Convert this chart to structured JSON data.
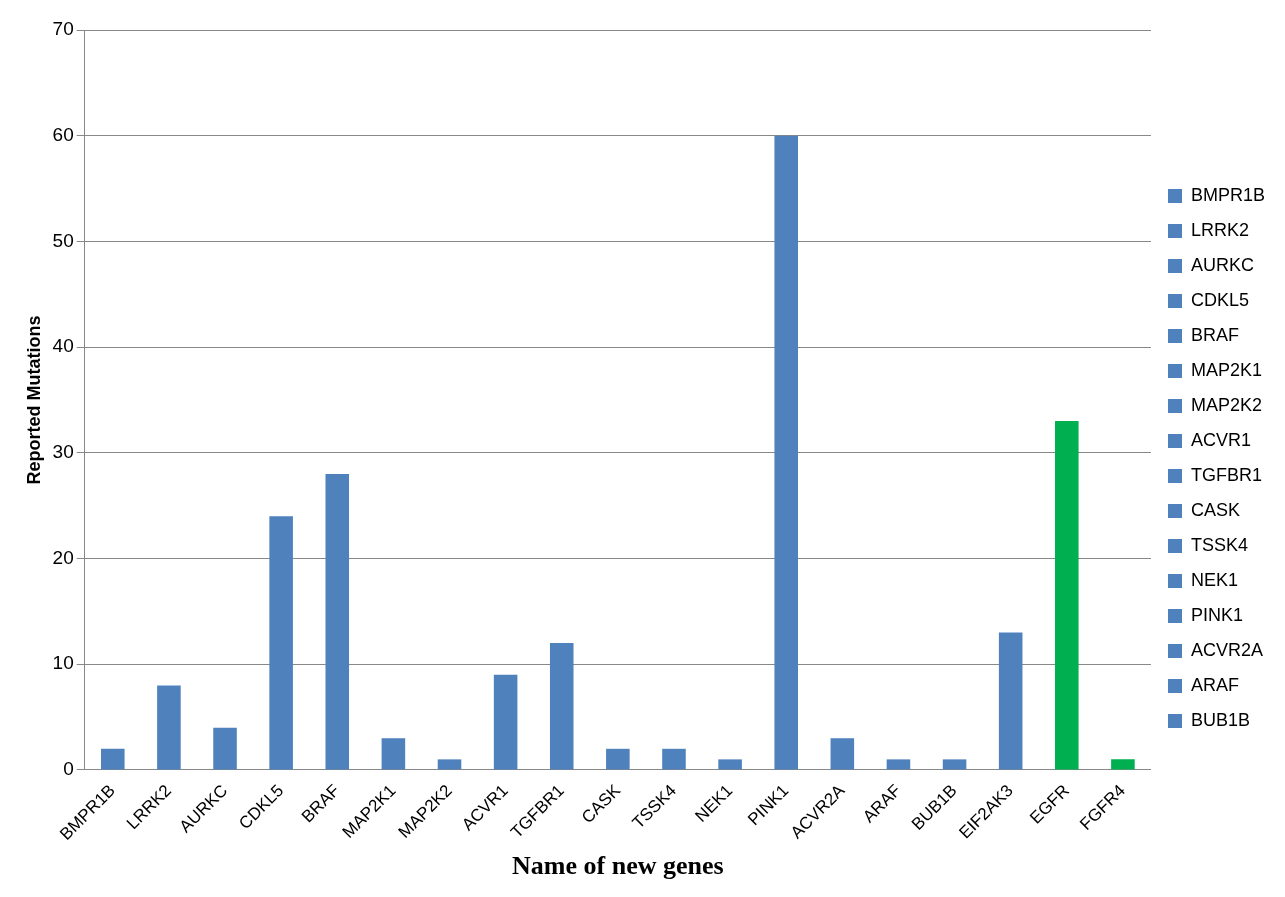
{
  "chart_data": {
    "type": "bar",
    "xlabel": "Name of new genes",
    "ylabel": "Reported Mutations",
    "categories": [
      "BMPR1B",
      "LRRK2",
      "AURKC",
      "CDKL5",
      "BRAF",
      "MAP2K1",
      "MAP2K2",
      "ACVR1",
      "TGFBR1",
      "CASK",
      "TSSK4",
      "NEK1",
      "PINK1",
      "ACVR2A",
      "ARAF",
      "BUB1B",
      "EIF2AK3",
      "EGFR",
      "FGFR4"
    ],
    "series": [
      {
        "name": "BMPR1B",
        "color": "#4f81bd",
        "values": [
          2,
          null,
          null,
          null,
          null,
          null,
          null,
          null,
          null,
          null,
          null,
          null,
          null,
          null,
          null,
          null,
          null,
          null,
          null
        ]
      },
      {
        "name": "LRRK2",
        "color": "#4f81bd",
        "values": [
          null,
          8,
          null,
          null,
          null,
          null,
          null,
          null,
          null,
          null,
          null,
          null,
          null,
          null,
          null,
          null,
          null,
          null,
          null
        ]
      },
      {
        "name": "AURKC",
        "color": "#4f81bd",
        "values": [
          null,
          null,
          4,
          null,
          null,
          null,
          null,
          null,
          null,
          null,
          null,
          null,
          null,
          null,
          null,
          null,
          null,
          null,
          null
        ]
      },
      {
        "name": "CDKL5",
        "color": "#4f81bd",
        "values": [
          null,
          null,
          null,
          24,
          null,
          null,
          null,
          null,
          null,
          null,
          null,
          null,
          null,
          null,
          null,
          null,
          null,
          null,
          null
        ]
      },
      {
        "name": "BRAF",
        "color": "#4f81bd",
        "values": [
          null,
          null,
          null,
          null,
          28,
          null,
          null,
          null,
          null,
          null,
          null,
          null,
          null,
          null,
          null,
          null,
          null,
          null,
          null
        ]
      },
      {
        "name": "MAP2K1",
        "color": "#4f81bd",
        "values": [
          null,
          null,
          null,
          null,
          null,
          3,
          null,
          null,
          null,
          null,
          null,
          null,
          null,
          null,
          null,
          null,
          null,
          null,
          null
        ]
      },
      {
        "name": "MAP2K2",
        "color": "#4f81bd",
        "values": [
          null,
          null,
          null,
          null,
          null,
          null,
          1,
          null,
          null,
          null,
          null,
          null,
          null,
          null,
          null,
          null,
          null,
          null,
          null
        ]
      },
      {
        "name": "ACVR1",
        "color": "#4f81bd",
        "values": [
          null,
          null,
          null,
          null,
          null,
          null,
          null,
          9,
          null,
          null,
          null,
          null,
          null,
          null,
          null,
          null,
          null,
          null,
          null
        ]
      },
      {
        "name": "TGFBR1",
        "color": "#4f81bd",
        "values": [
          null,
          null,
          null,
          null,
          null,
          null,
          null,
          null,
          12,
          null,
          null,
          null,
          null,
          null,
          null,
          null,
          null,
          null,
          null
        ]
      },
      {
        "name": "CASK",
        "color": "#4f81bd",
        "values": [
          null,
          null,
          null,
          null,
          null,
          null,
          null,
          null,
          null,
          2,
          null,
          null,
          null,
          null,
          null,
          null,
          null,
          null,
          null
        ]
      },
      {
        "name": "TSSK4",
        "color": "#4f81bd",
        "values": [
          null,
          null,
          null,
          null,
          null,
          null,
          null,
          null,
          null,
          null,
          2,
          null,
          null,
          null,
          null,
          null,
          null,
          null,
          null
        ]
      },
      {
        "name": "NEK1",
        "color": "#4f81bd",
        "values": [
          null,
          null,
          null,
          null,
          null,
          null,
          null,
          null,
          null,
          null,
          null,
          1,
          null,
          null,
          null,
          null,
          null,
          null,
          null
        ]
      },
      {
        "name": "PINK1",
        "color": "#4f81bd",
        "values": [
          null,
          null,
          null,
          null,
          null,
          null,
          null,
          null,
          null,
          null,
          null,
          null,
          60,
          null,
          null,
          null,
          null,
          null,
          null
        ]
      },
      {
        "name": "ACVR2A",
        "color": "#4f81bd",
        "values": [
          null,
          null,
          null,
          null,
          null,
          null,
          null,
          null,
          null,
          null,
          null,
          null,
          null,
          3,
          null,
          null,
          null,
          null,
          null
        ]
      },
      {
        "name": "ARAF",
        "color": "#4f81bd",
        "values": [
          null,
          null,
          null,
          null,
          null,
          null,
          null,
          null,
          null,
          null,
          null,
          null,
          null,
          null,
          1,
          null,
          null,
          null,
          null
        ]
      },
      {
        "name": "BUB1B",
        "color": "#4f81bd",
        "values": [
          null,
          null,
          null,
          null,
          null,
          null,
          null,
          null,
          null,
          null,
          null,
          null,
          null,
          null,
          null,
          1,
          null,
          null,
          null
        ]
      },
      {
        "color": "#4f81bd",
        "values": [
          null,
          null,
          null,
          null,
          null,
          null,
          null,
          null,
          null,
          null,
          null,
          null,
          null,
          null,
          null,
          null,
          13,
          null,
          null
        ]
      },
      {
        "color": "#00b050",
        "values": [
          null,
          null,
          null,
          null,
          null,
          null,
          null,
          null,
          null,
          null,
          null,
          null,
          null,
          null,
          null,
          null,
          null,
          33,
          null
        ]
      },
      {
        "color": "#00b050",
        "values": [
          null,
          null,
          null,
          null,
          null,
          null,
          null,
          null,
          null,
          null,
          null,
          null,
          null,
          null,
          null,
          null,
          null,
          null,
          1
        ]
      }
    ],
    "ylim": [
      0,
      70
    ],
    "yticks": [
      0,
      10,
      20,
      30,
      40,
      50,
      60,
      70
    ],
    "grid": "y",
    "legend": "right"
  }
}
